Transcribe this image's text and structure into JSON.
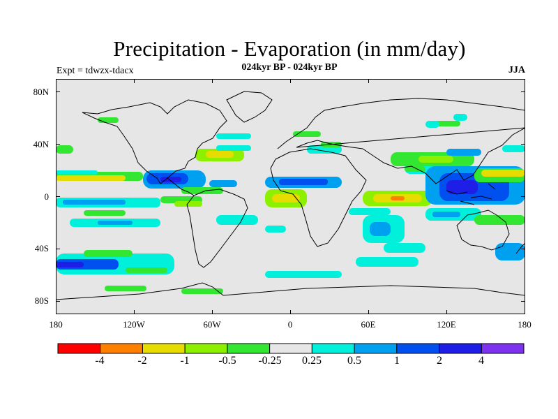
{
  "title": "Precipitation - Evaporation (in mm/day)",
  "subtitle": "024kyr BP - 024kyr BP",
  "experiment": "Expt = tdwzx-tdacx",
  "season": "JJA",
  "map": {
    "projection": "cylindrical-equidistant",
    "lon_range": [
      -180,
      180
    ],
    "lat_range": [
      -90,
      90
    ],
    "land_color": "#e6e6e6",
    "coastline_color": "#000000",
    "y_tick_labels": [
      "80N",
      "40N",
      "0",
      "40S",
      "80S"
    ],
    "x_tick_labels": [
      "180",
      "120W",
      "60W",
      "0",
      "60E",
      "120E",
      "180"
    ]
  },
  "colorbar": {
    "colors": [
      "#ff0000",
      "#ff8000",
      "#e6dc00",
      "#8cf000",
      "#32e632",
      "#e6e6e6",
      "#00f0dc",
      "#00a0f0",
      "#0050f0",
      "#1e1ee6",
      "#7d32f0"
    ],
    "labels": [
      "-4",
      "-2",
      "-1",
      "-0.5",
      "-0.25",
      "0.25",
      "0.5",
      "1",
      "2",
      "4"
    ]
  }
}
